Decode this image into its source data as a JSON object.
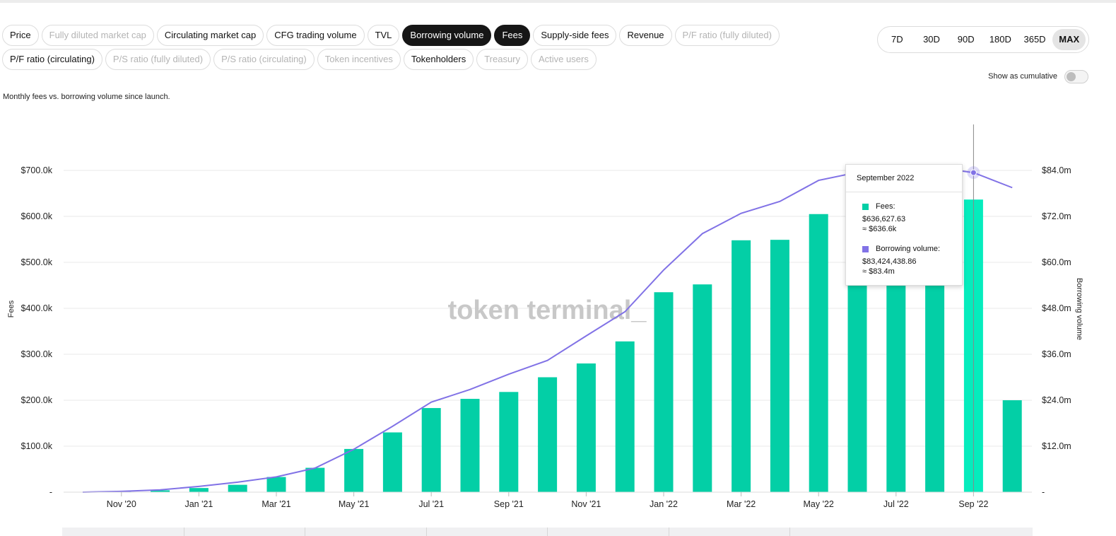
{
  "metric_tabs": [
    [
      {
        "label": "Price",
        "state": "normal"
      },
      {
        "label": "Fully diluted market cap",
        "state": "disabled"
      },
      {
        "label": "Circulating market cap",
        "state": "normal"
      },
      {
        "label": "CFG trading volume",
        "state": "normal"
      },
      {
        "label": "TVL",
        "state": "normal"
      },
      {
        "label": "Borrowing volume",
        "state": "active"
      },
      {
        "label": "Fees",
        "state": "active"
      },
      {
        "label": "Supply-side fees",
        "state": "normal"
      },
      {
        "label": "Revenue",
        "state": "normal"
      },
      {
        "label": "P/F ratio (fully diluted)",
        "state": "disabled"
      }
    ],
    [
      {
        "label": "P/F ratio (circulating)",
        "state": "normal"
      },
      {
        "label": "P/S ratio (fully diluted)",
        "state": "disabled"
      },
      {
        "label": "P/S ratio (circulating)",
        "state": "disabled"
      },
      {
        "label": "Token incentives",
        "state": "disabled"
      },
      {
        "label": "Tokenholders",
        "state": "normal"
      },
      {
        "label": "Treasury",
        "state": "disabled"
      },
      {
        "label": "Active users",
        "state": "disabled"
      }
    ]
  ],
  "time_range": {
    "options": [
      "7D",
      "30D",
      "90D",
      "180D",
      "365D",
      "MAX"
    ],
    "selected": "MAX"
  },
  "cumulative_toggle": {
    "label": "Show as cumulative",
    "on": false
  },
  "subtitle": "Monthly fees vs. borrowing volume since launch.",
  "watermark": "token terminal_",
  "colors": {
    "bar": "#03cfa6",
    "bar_highlight": "#05ecbd",
    "line": "#8172e6",
    "grid": "#e9e9e9"
  },
  "chart_data": {
    "type": "bar",
    "title": "",
    "xlabel": "",
    "ylabel": "Fees",
    "y2label": "Borrowing volume",
    "ylim": [
      0,
      700000
    ],
    "y2lim": [
      0,
      84000000
    ],
    "y_ticks": [
      "-",
      "$100.0k",
      "$200.0k",
      "$300.0k",
      "$400.0k",
      "$500.0k",
      "$600.0k",
      "$700.0k"
    ],
    "y2_ticks": [
      "-",
      "$12.0m",
      "$24.0m",
      "$36.0m",
      "$48.0m",
      "$60.0m",
      "$72.0m",
      "$84.0m"
    ],
    "grid": true,
    "categories": [
      "Oct '20",
      "Nov '20",
      "Dec '20",
      "Jan '21",
      "Feb '21",
      "Mar '21",
      "Apr '21",
      "May '21",
      "Jun '21",
      "Jul '21",
      "Aug '21",
      "Sep '21",
      "Oct '21",
      "Nov '21",
      "Dec '21",
      "Jan '22",
      "Feb '22",
      "Mar '22",
      "Apr '22",
      "May '22",
      "Jun '22",
      "Jul '22",
      "Aug '22",
      "Sep '22",
      "Oct '22"
    ],
    "x_tick_labels": [
      "Nov '20",
      "Jan '21",
      "Mar '21",
      "May '21",
      "Jul '21",
      "Sep '21",
      "Nov '21",
      "Jan '22",
      "Mar '22",
      "May '22",
      "Jul '22",
      "Sep '22"
    ],
    "series": [
      {
        "name": "Fees",
        "kind": "bar",
        "axis": "left",
        "values": [
          0,
          2000,
          4000,
          9000,
          16000,
          33000,
          53000,
          94000,
          130000,
          183000,
          203000,
          218000,
          250000,
          280000,
          328000,
          435000,
          452000,
          548000,
          549000,
          605000,
          470000,
          470000,
          470000,
          636627.63,
          200000
        ]
      },
      {
        "name": "Borrowing volume",
        "kind": "line",
        "axis": "right",
        "values": [
          0,
          200000,
          600000,
          1500000,
          2600000,
          4000000,
          6300000,
          11200000,
          17200000,
          23500000,
          26800000,
          30800000,
          34400000,
          40800000,
          47100000,
          58000000,
          67500000,
          72800000,
          75900000,
          81400000,
          83500000,
          85000000,
          84800000,
          83424438.86,
          79500000
        ]
      }
    ],
    "hover_index": 23
  },
  "tooltip": {
    "title": "September 2022",
    "fees_label": "Fees:",
    "fees_value": "$636,627.63",
    "fees_short": "≈ $636.6k",
    "volume_label": "Borrowing volume:",
    "volume_value": "$83,424,438.86",
    "volume_short": "≈ $83.4m"
  }
}
